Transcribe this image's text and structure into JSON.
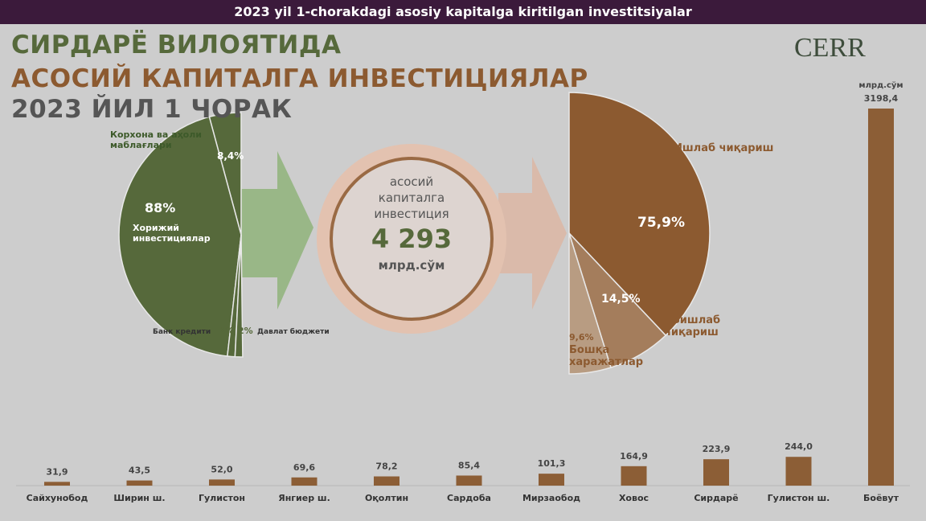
{
  "header": {
    "banner": "2023 yil 1-chorakdagi asosiy kapitalga kiritilgan investitsiyalar",
    "title_lines": [
      "СИРДАРЁ ВИЛОЯТИДА",
      "АСОСИЙ КАПИТАЛГА ИНВЕСТИЦИЯЛАР",
      "2023 ЙИЛ 1 ЧОРАК"
    ],
    "logo": "CERR"
  },
  "center": {
    "lines": [
      "асосий",
      "капиталга",
      "инвестиция"
    ],
    "value": "4 293",
    "unit": "млрд.сўм"
  },
  "chart_data": [
    {
      "type": "pie",
      "categories": [
        "Корхона ва аҳоли маблағлари",
        "Хорижий инвестициялар",
        "Банк кредити",
        "Давлат бюджети"
      ],
      "values": [
        8.4,
        88,
        2,
        2
      ],
      "value_labels": [
        "8,4%",
        "88%",
        "2%",
        "2%"
      ],
      "color": "#56693b"
    },
    {
      "type": "pie",
      "categories": [
        "Ишлаб чиқариш",
        "Ноишлаб чиқариш",
        "Бошқа харажатлар"
      ],
      "values": [
        75.9,
        14.5,
        9.6
      ],
      "value_labels": [
        "75,9%",
        "14,5%",
        "9,6%"
      ],
      "colors": [
        "#8c5a30",
        "#a47d5c",
        "#b89c82"
      ]
    },
    {
      "type": "bar",
      "unit": "млрд.сўм",
      "color": "#8c5e36",
      "categories": [
        "Сайхунобод",
        "Ширин ш.",
        "Гулистон",
        "Янгиер ш.",
        "Оқолтин",
        "Сардоба",
        "Мирзаобод",
        "Ховос",
        "Сирдарё",
        "Гулистон ш.",
        "Боёвут"
      ],
      "values": [
        31.9,
        43.5,
        52.0,
        69.6,
        78.2,
        85.4,
        101.3,
        164.9,
        223.9,
        244.0,
        3198.4
      ],
      "value_labels": [
        "31,9",
        "43,5",
        "52,0",
        "69,6",
        "78,2",
        "85,4",
        "101,3",
        "164,9",
        "223,9",
        "244,0",
        "3198,4"
      ]
    }
  ]
}
